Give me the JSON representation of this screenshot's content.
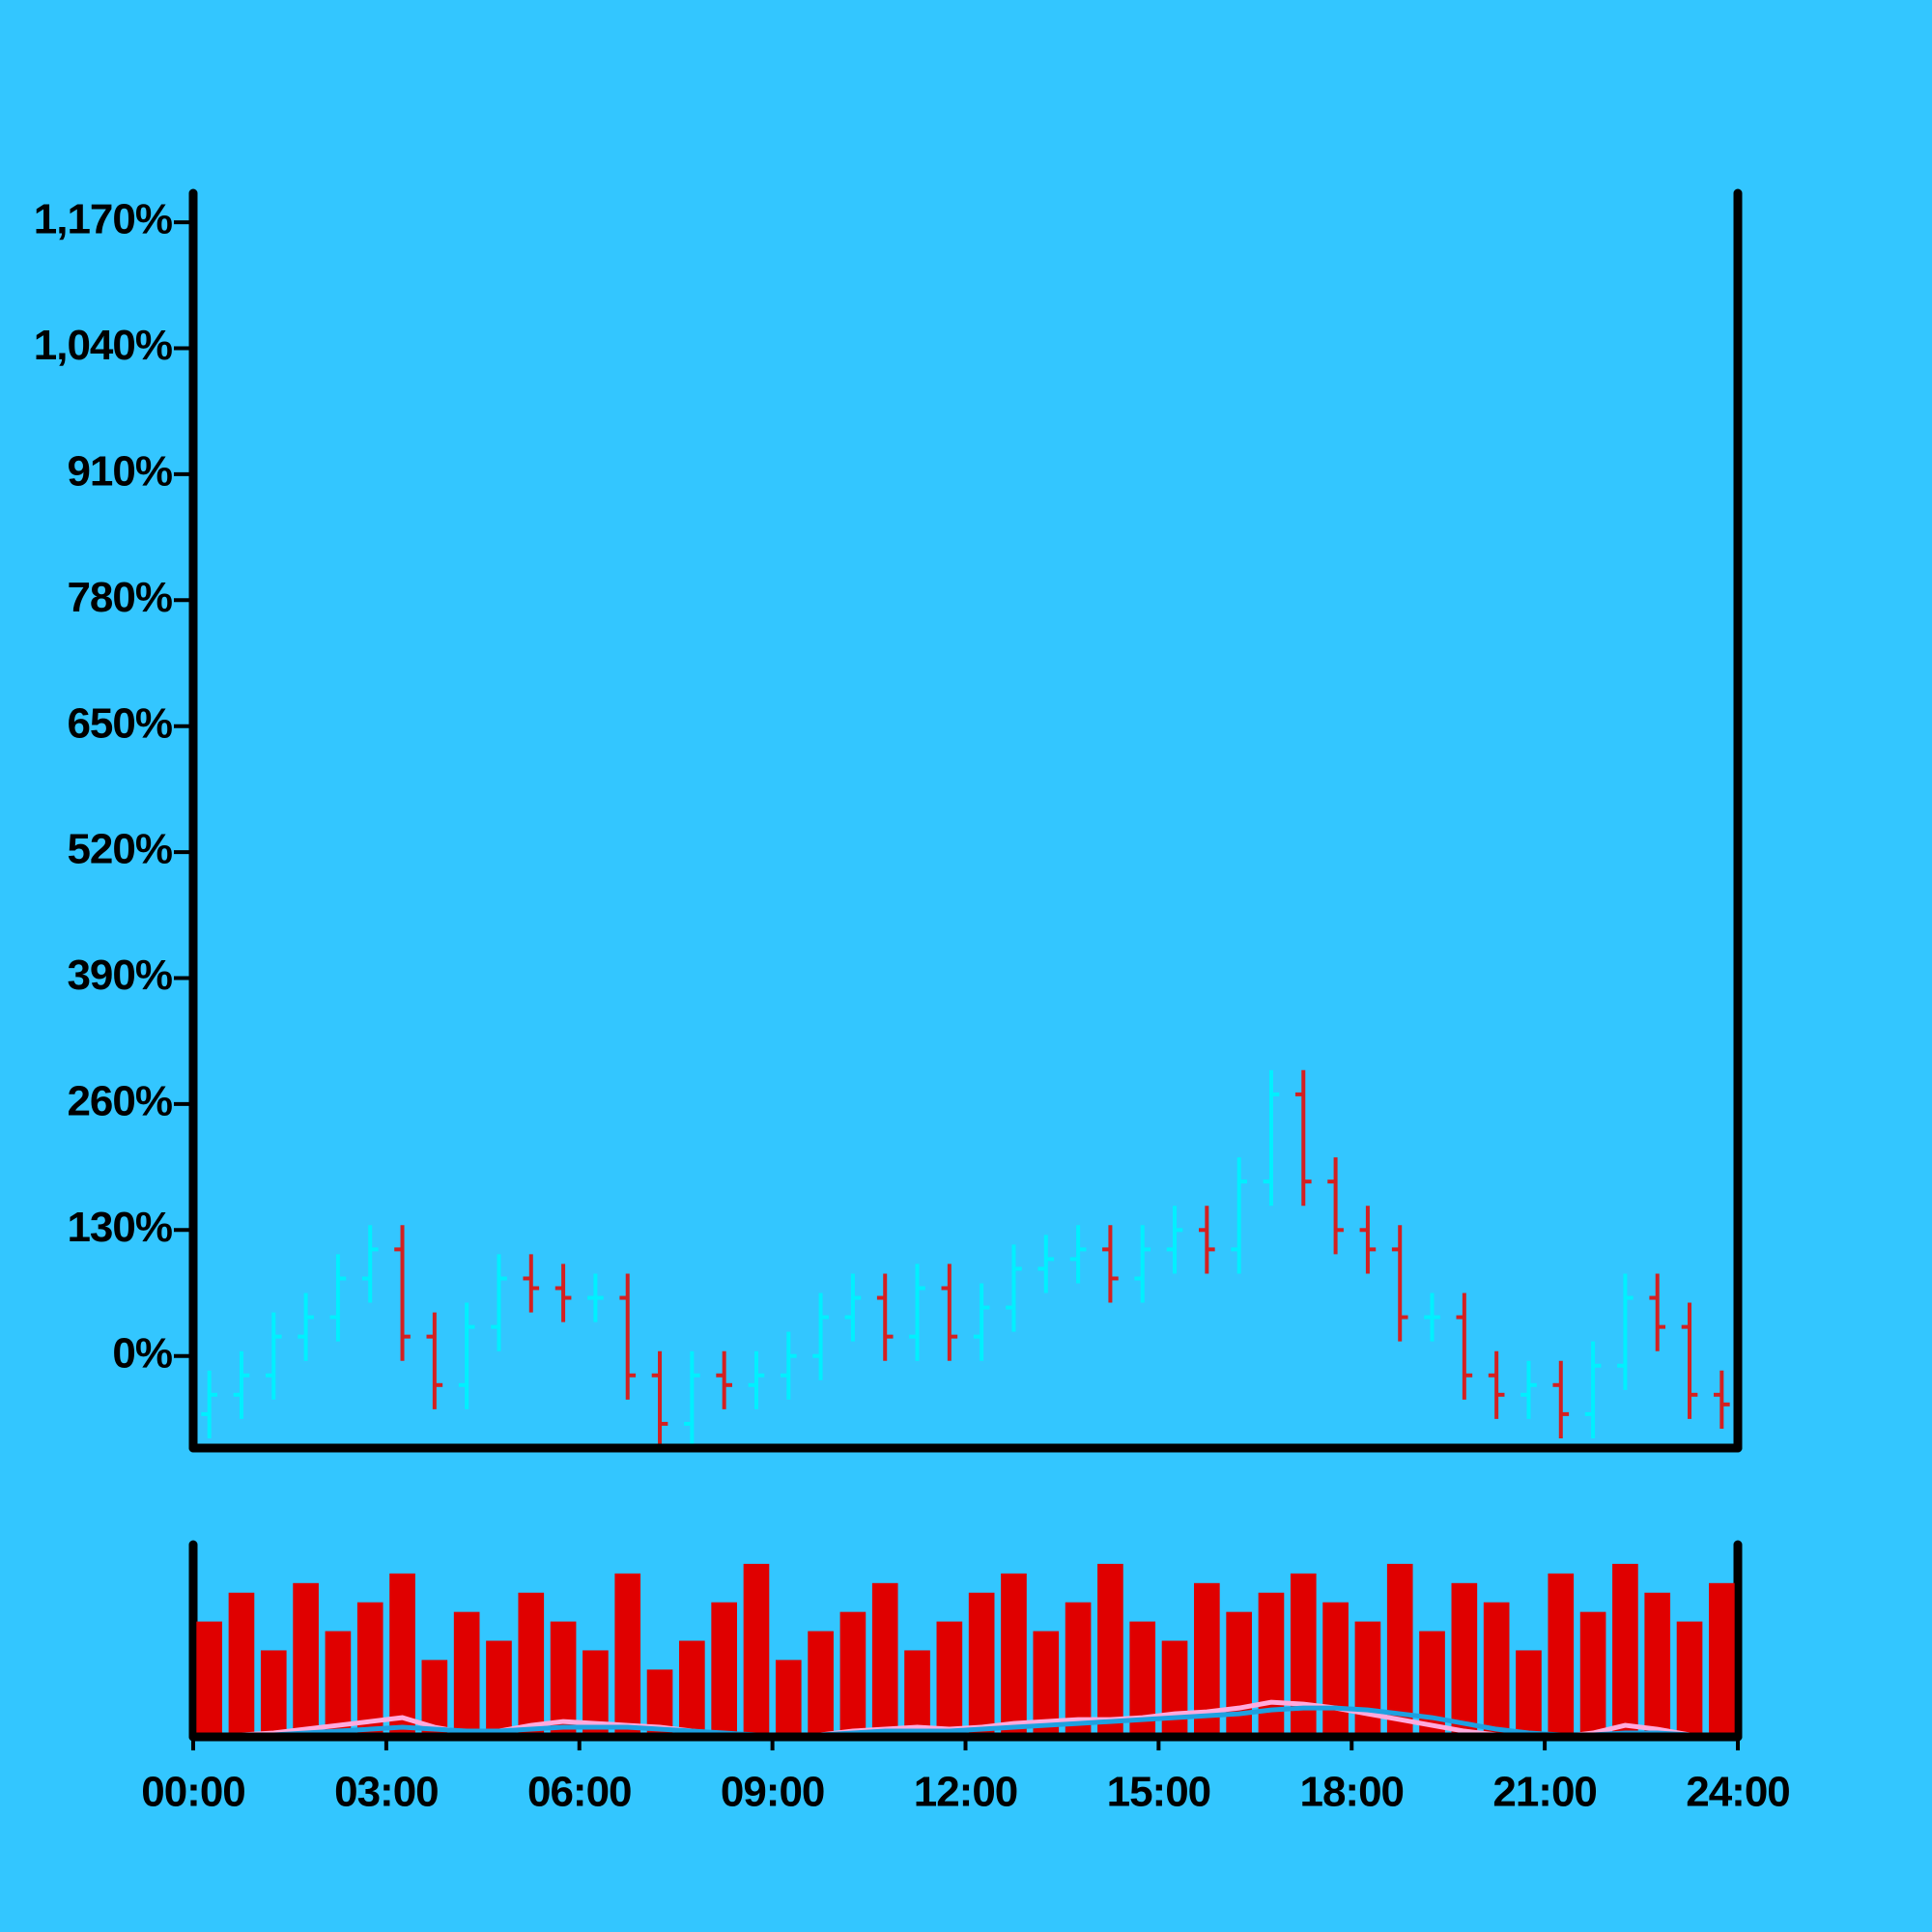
{
  "chart_data": [
    {
      "type": "ohlc",
      "x": [
        0.25,
        0.75,
        1.25,
        1.75,
        2.25,
        2.75,
        3.25,
        3.75,
        4.25,
        4.75,
        5.25,
        5.75,
        6.25,
        6.75,
        7.25,
        7.75,
        8.25,
        8.75,
        9.25,
        9.75,
        10.25,
        10.75,
        11.25,
        11.75,
        12.25,
        12.75,
        13.25,
        13.75,
        14.25,
        14.75,
        15.25,
        15.75,
        16.25,
        16.75,
        17.25,
        17.75,
        18.25,
        18.75,
        19.25,
        19.75,
        20.25,
        20.75,
        21.25,
        21.75,
        22.25,
        22.75,
        23.25,
        23.75
      ],
      "open": [
        -60,
        -40,
        -20,
        20,
        40,
        80,
        110,
        20,
        -30,
        30,
        80,
        70,
        60,
        60,
        -20,
        -70,
        -20,
        -30,
        -20,
        0,
        40,
        60,
        20,
        70,
        20,
        50,
        90,
        100,
        110,
        80,
        110,
        130,
        110,
        180,
        270,
        180,
        130,
        110,
        40,
        40,
        -20,
        -40,
        -30,
        -60,
        -10,
        60,
        30,
        -40
      ],
      "high": [
        -15,
        5,
        45,
        65,
        105,
        135,
        135,
        45,
        55,
        105,
        105,
        95,
        85,
        85,
        5,
        5,
        5,
        5,
        25,
        65,
        85,
        85,
        95,
        95,
        75,
        115,
        125,
        135,
        135,
        135,
        155,
        155,
        205,
        295,
        295,
        205,
        155,
        135,
        65,
        65,
        5,
        -5,
        -5,
        15,
        85,
        85,
        55,
        -15
      ],
      "low": [
        -85,
        -65,
        -45,
        -5,
        15,
        55,
        -5,
        -55,
        -55,
        5,
        45,
        35,
        35,
        -45,
        -95,
        -95,
        -55,
        -55,
        -45,
        -25,
        15,
        -5,
        -5,
        -5,
        -5,
        25,
        65,
        75,
        55,
        55,
        85,
        85,
        85,
        155,
        155,
        105,
        85,
        15,
        15,
        -45,
        -65,
        -65,
        -85,
        -85,
        -35,
        5,
        -65,
        -75
      ],
      "close": [
        -40,
        -20,
        20,
        40,
        80,
        110,
        20,
        -30,
        30,
        80,
        70,
        60,
        60,
        -20,
        -70,
        -20,
        -30,
        -20,
        0,
        40,
        60,
        20,
        70,
        20,
        50,
        90,
        100,
        110,
        80,
        110,
        130,
        110,
        180,
        270,
        180,
        130,
        110,
        40,
        40,
        -20,
        -40,
        -30,
        -60,
        -10,
        60,
        30,
        -40,
        -50
      ],
      "up_color": "#00f0ff",
      "down_color": "#d42020",
      "xlim": [
        0,
        24
      ],
      "ylim": [
        -95,
        1200
      ],
      "yticks": [
        {
          "value": 0,
          "label": "0%"
        },
        {
          "value": 130,
          "label": "130%"
        },
        {
          "value": 260,
          "label": "260%"
        },
        {
          "value": 390,
          "label": "390%"
        },
        {
          "value": 520,
          "label": "520%"
        },
        {
          "value": 650,
          "label": "650%"
        },
        {
          "value": 780,
          "label": "780%"
        },
        {
          "value": 910,
          "label": "910%"
        },
        {
          "value": 1040,
          "label": "1,040%"
        },
        {
          "value": 1170,
          "label": "1,170%"
        }
      ]
    },
    {
      "type": "bar",
      "x": [
        0.25,
        0.75,
        1.25,
        1.75,
        2.25,
        2.75,
        3.25,
        3.75,
        4.25,
        4.75,
        5.25,
        5.75,
        6.25,
        6.75,
        7.25,
        7.75,
        8.25,
        8.75,
        9.25,
        9.75,
        10.25,
        10.75,
        11.25,
        11.75,
        12.25,
        12.75,
        13.25,
        13.75,
        14.25,
        14.75,
        15.25,
        15.75,
        16.25,
        16.75,
        17.25,
        17.75,
        18.25,
        18.75,
        19.25,
        19.75,
        20.25,
        20.75,
        21.25,
        21.75,
        22.25,
        22.75,
        23.25,
        23.75
      ],
      "values": [
        60,
        75,
        45,
        80,
        55,
        70,
        85,
        40,
        65,
        50,
        75,
        60,
        45,
        85,
        35,
        50,
        70,
        90,
        40,
        55,
        65,
        80,
        45,
        60,
        75,
        85,
        55,
        70,
        90,
        60,
        50,
        80,
        65,
        75,
        85,
        70,
        60,
        90,
        55,
        80,
        70,
        45,
        85,
        65,
        90,
        75,
        60,
        80
      ],
      "color": "#e00000",
      "series": [
        {
          "color": "#ffaadd",
          "values": [
            1,
            1,
            2,
            4,
            6,
            8,
            10,
            5,
            2,
            3,
            6,
            8,
            7,
            6,
            5,
            3,
            1,
            0,
            0,
            1,
            3,
            4,
            5,
            4,
            5,
            7,
            8,
            9,
            9,
            10,
            12,
            13,
            15,
            18,
            17,
            15,
            12,
            9,
            6,
            3,
            1,
            0,
            0,
            2,
            6,
            4,
            1,
            0
          ]
        },
        {
          "color": "#1ea0e0",
          "values": [
            0,
            1,
            1,
            2,
            3,
            4,
            5,
            4,
            3,
            3,
            4,
            5,
            5,
            5,
            4,
            3,
            2,
            1,
            0,
            1,
            2,
            3,
            3,
            3,
            4,
            5,
            6,
            7,
            8,
            9,
            10,
            11,
            12,
            14,
            15,
            15,
            14,
            12,
            10,
            7,
            4,
            2,
            1,
            1,
            2,
            2,
            1,
            0
          ]
        }
      ],
      "xlim": [
        0,
        24
      ],
      "ylim": [
        0,
        100
      ],
      "xticks": [
        {
          "value": 0,
          "label": "00:00"
        },
        {
          "value": 3,
          "label": "03:00"
        },
        {
          "value": 6,
          "label": "06:00"
        },
        {
          "value": 9,
          "label": "09:00"
        },
        {
          "value": 12,
          "label": "12:00"
        },
        {
          "value": 15,
          "label": "15:00"
        },
        {
          "value": 18,
          "label": "18:00"
        },
        {
          "value": 21,
          "label": "21:00"
        },
        {
          "value": 24,
          "label": "24:00"
        }
      ]
    }
  ]
}
